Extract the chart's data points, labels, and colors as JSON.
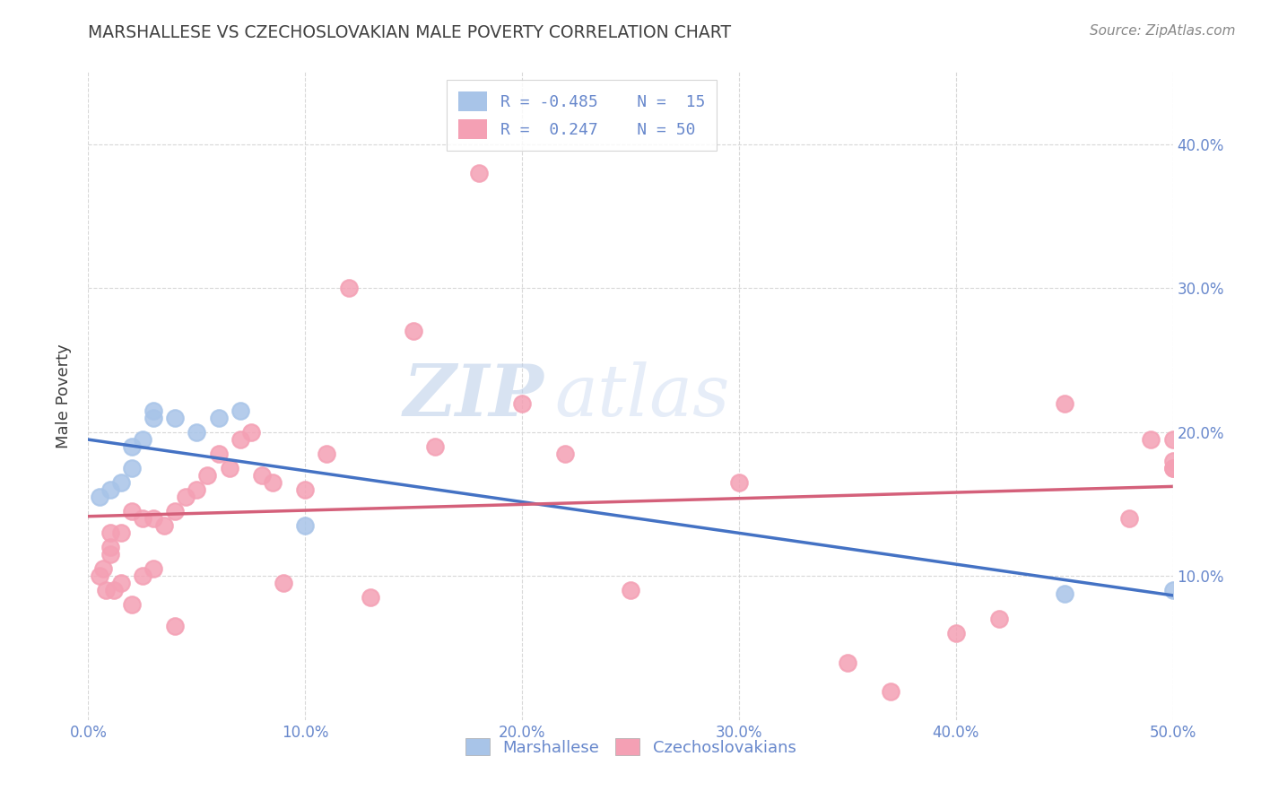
{
  "title": "MARSHALLESE VS CZECHOSLOVAKIAN MALE POVERTY CORRELATION CHART",
  "source": "Source: ZipAtlas.com",
  "ylabel": "Male Poverty",
  "watermark_zip": "ZIP",
  "watermark_atlas": "atlas",
  "xlim": [
    0.0,
    0.5
  ],
  "ylim": [
    0.0,
    0.45
  ],
  "legend": {
    "marshallese_R": "-0.485",
    "marshallese_N": "15",
    "czechoslovakian_R": "0.247",
    "czechoslovakian_N": "50"
  },
  "marshallese_color": "#a8c4e8",
  "czechoslovakian_color": "#f4a0b4",
  "trend_marshallese_color": "#4472c4",
  "trend_czechoslovakian_color": "#d4607a",
  "trend_ext_color": "#c8c8c8",
  "background_color": "#ffffff",
  "grid_color": "#d8d8d8",
  "title_color": "#404040",
  "axis_label_color": "#6888cc",
  "source_color": "#888888",
  "marshallese_x": [
    0.005,
    0.01,
    0.015,
    0.02,
    0.02,
    0.025,
    0.03,
    0.03,
    0.04,
    0.05,
    0.06,
    0.07,
    0.1,
    0.45,
    0.5
  ],
  "marshallese_y": [
    0.155,
    0.16,
    0.165,
    0.175,
    0.19,
    0.195,
    0.21,
    0.215,
    0.21,
    0.2,
    0.21,
    0.215,
    0.135,
    0.088,
    0.09
  ],
  "czechoslovakian_x": [
    0.005,
    0.007,
    0.008,
    0.01,
    0.01,
    0.01,
    0.012,
    0.015,
    0.015,
    0.02,
    0.02,
    0.025,
    0.025,
    0.03,
    0.03,
    0.035,
    0.04,
    0.04,
    0.045,
    0.05,
    0.055,
    0.06,
    0.065,
    0.07,
    0.075,
    0.08,
    0.085,
    0.09,
    0.1,
    0.11,
    0.12,
    0.13,
    0.15,
    0.16,
    0.18,
    0.2,
    0.22,
    0.25,
    0.3,
    0.35,
    0.37,
    0.4,
    0.42,
    0.45,
    0.48,
    0.49,
    0.5,
    0.5,
    0.5,
    0.5
  ],
  "czechoslovakian_y": [
    0.1,
    0.105,
    0.09,
    0.115,
    0.12,
    0.13,
    0.09,
    0.13,
    0.095,
    0.08,
    0.145,
    0.1,
    0.14,
    0.105,
    0.14,
    0.135,
    0.065,
    0.145,
    0.155,
    0.16,
    0.17,
    0.185,
    0.175,
    0.195,
    0.2,
    0.17,
    0.165,
    0.095,
    0.16,
    0.185,
    0.3,
    0.085,
    0.27,
    0.19,
    0.38,
    0.22,
    0.185,
    0.09,
    0.165,
    0.04,
    0.02,
    0.06,
    0.07,
    0.22,
    0.14,
    0.195,
    0.175,
    0.195,
    0.175,
    0.18
  ],
  "xticks": [
    0.0,
    0.1,
    0.2,
    0.3,
    0.4,
    0.5
  ],
  "xticklabels": [
    "0.0%",
    "10.0%",
    "20.0%",
    "30.0%",
    "40.0%",
    "50.0%"
  ],
  "yticks": [
    0.1,
    0.2,
    0.3,
    0.4
  ],
  "yticklabels": [
    "10.0%",
    "20.0%",
    "30.0%",
    "40.0%"
  ]
}
